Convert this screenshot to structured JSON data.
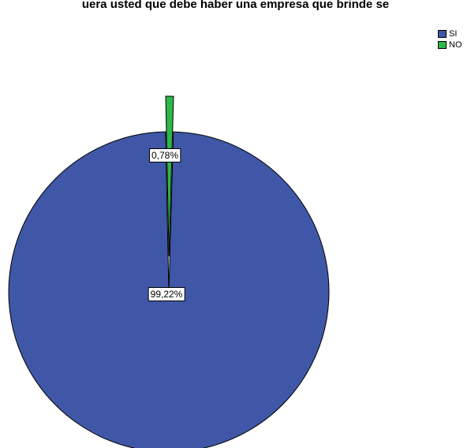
{
  "chart_data": {
    "type": "pie",
    "title": "uera usted que debe haber una empresa que brinde se",
    "categories": [
      "SI",
      "NO"
    ],
    "values": [
      99.22,
      0.78
    ],
    "labels": [
      "99,22%",
      "0,78%"
    ],
    "colors": [
      "#3f57a6",
      "#2db84a"
    ],
    "exploded": [
      false,
      true
    ],
    "legend_position": "top-right"
  }
}
